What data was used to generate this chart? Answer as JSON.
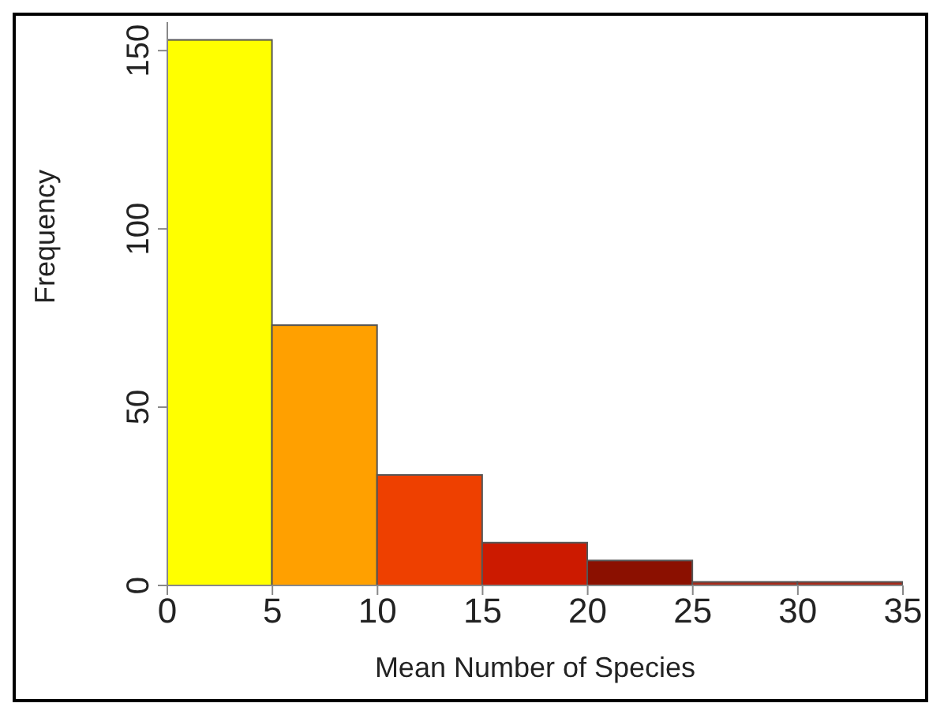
{
  "chart_data": {
    "type": "histogram",
    "xlabel": "Mean Number of Species",
    "ylabel": "Frequency",
    "bins": [
      0,
      5,
      10,
      15,
      20,
      25,
      30,
      35
    ],
    "values": [
      153,
      73,
      31,
      12,
      7,
      1,
      1
    ],
    "colors": [
      "#ffff00",
      "#ffa000",
      "#ee4000",
      "#cc1a00",
      "#8b1000",
      "#a52a1a",
      "#a52a1a"
    ],
    "xlim": [
      0,
      35
    ],
    "xticks": [
      0,
      5,
      10,
      15,
      20,
      25,
      30,
      35
    ],
    "ylim": [
      0,
      158
    ],
    "yticks": [
      0,
      50,
      100,
      150
    ],
    "grid": false
  }
}
